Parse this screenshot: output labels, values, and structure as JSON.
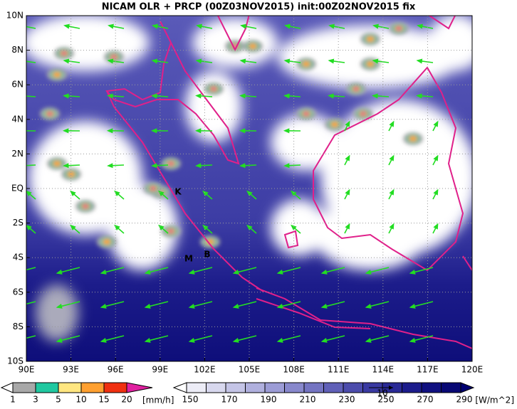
{
  "title": "NICAM OLR + PRCP (00Z03NOV2015) init:00Z02NOV2015 fix",
  "x_labels": [
    "90E",
    "93E",
    "96E",
    "99E",
    "102E",
    "105E",
    "108E",
    "111E",
    "114E",
    "117E",
    "120E"
  ],
  "y_labels": [
    "10N",
    "8N",
    "6N",
    "4N",
    "2N",
    "EQ",
    "2S",
    "4S",
    "6S",
    "8S",
    "10S"
  ],
  "annotations": [
    "K",
    "M",
    "B"
  ],
  "precip_colorbar": {
    "labels": [
      1,
      3,
      5,
      10,
      15,
      20
    ],
    "unit": "[mm/h]"
  },
  "olr_colorbar": {
    "labels": [
      150,
      170,
      190,
      210,
      230,
      250,
      270,
      290
    ],
    "unit": "[W/m^2]"
  },
  "vector_reference": "10"
}
